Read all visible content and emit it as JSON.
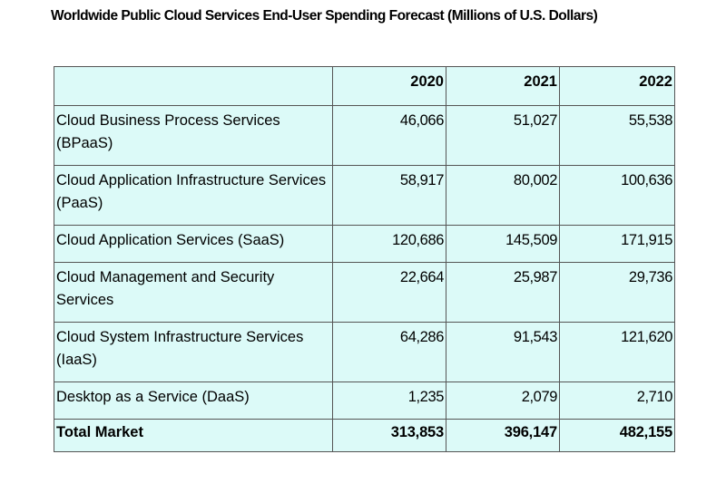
{
  "title": "Worldwide Public Cloud Services End-User Spending Forecast (Millions of U.S. Dollars)",
  "table": {
    "headers": [
      "",
      "2020",
      "2021",
      "2022"
    ],
    "rows": [
      {
        "label": "Cloud Business Process Services (BPaaS)",
        "values": [
          "46,066",
          "51,027",
          "55,538"
        ]
      },
      {
        "label": "Cloud Application Infrastructure Services (PaaS)",
        "values": [
          "58,917",
          "80,002",
          "100,636"
        ]
      },
      {
        "label": "Cloud Application Services (SaaS)",
        "values": [
          "120,686",
          "145,509",
          "171,915"
        ]
      },
      {
        "label": "Cloud Management and Security Services",
        "values": [
          "22,664",
          "25,987",
          "29,736"
        ]
      },
      {
        "label": "Cloud System Infrastructure Services (IaaS)",
        "values": [
          "64,286",
          "91,543",
          "121,620"
        ]
      },
      {
        "label": "Desktop as a Service (DaaS)",
        "values": [
          "1,235",
          "2,079",
          "2,710"
        ]
      }
    ],
    "total": {
      "label": "Total Market",
      "values": [
        "313,853",
        "396,147",
        "482,155"
      ]
    }
  }
}
